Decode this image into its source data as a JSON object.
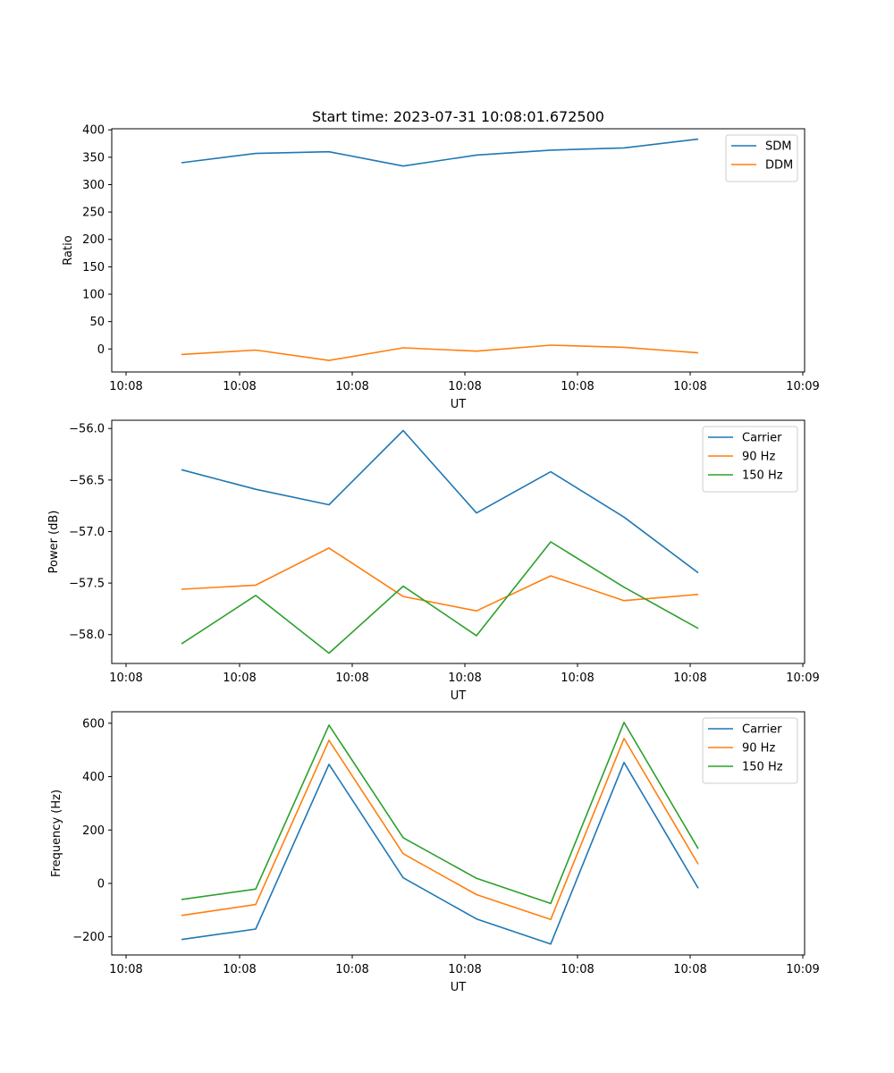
{
  "figure_title": "Start time: 2023-07-31 10:08:01.672500",
  "colors": {
    "series_1": "#1f77b4",
    "series_2": "#ff7f0e",
    "series_3": "#2ca02c"
  },
  "chart_data": [
    {
      "type": "line",
      "xlabel": "UT",
      "ylabel": "Ratio",
      "x_ticks": [
        "10:08",
        "10:08",
        "10:08",
        "10:08",
        "10:08",
        "10:08",
        "10:09"
      ],
      "y_ticks": [
        "0",
        "50",
        "100",
        "150",
        "200",
        "250",
        "300",
        "350",
        "400"
      ],
      "ylim": [
        -42,
        402
      ],
      "legend_position": "top-right",
      "series": [
        {
          "name": "SDM",
          "color": "#1f77b4",
          "values": [
            340,
            357,
            360,
            334,
            354,
            363,
            367,
            383
          ]
        },
        {
          "name": "DDM",
          "color": "#ff7f0e",
          "values": [
            -10,
            -2,
            -21,
            2,
            -4,
            7,
            3,
            -7
          ]
        }
      ]
    },
    {
      "type": "line",
      "xlabel": "UT",
      "ylabel": "Power (dB)",
      "x_ticks": [
        "10:08",
        "10:08",
        "10:08",
        "10:08",
        "10:08",
        "10:08",
        "10:09"
      ],
      "y_ticks": [
        "−58.0",
        "−57.5",
        "−57.0",
        "−56.5",
        "−56.0"
      ],
      "ylim": [
        -58.28,
        -55.92
      ],
      "legend_position": "top-right",
      "series": [
        {
          "name": "Carrier",
          "color": "#1f77b4",
          "values": [
            -56.4,
            -56.59,
            -56.74,
            -56.02,
            -56.82,
            -56.42,
            -56.86,
            -57.4
          ]
        },
        {
          "name": "90 Hz",
          "color": "#ff7f0e",
          "values": [
            -57.56,
            -57.52,
            -57.16,
            -57.63,
            -57.77,
            -57.43,
            -57.67,
            -57.61
          ]
        },
        {
          "name": "150 Hz",
          "color": "#2ca02c",
          "values": [
            -58.09,
            -57.62,
            -58.18,
            -57.53,
            -58.01,
            -57.1,
            -57.54,
            -57.94
          ]
        }
      ]
    },
    {
      "type": "line",
      "xlabel": "UT",
      "ylabel": "Frequency (Hz)",
      "x_ticks": [
        "10:08",
        "10:08",
        "10:08",
        "10:08",
        "10:08",
        "10:08",
        "10:09"
      ],
      "y_ticks": [
        "−200",
        "0",
        "200",
        "400",
        "600"
      ],
      "ylim": [
        -268,
        643
      ],
      "legend_position": "top-right",
      "series": [
        {
          "name": "Carrier",
          "color": "#1f77b4",
          "values": [
            -210,
            -171,
            446,
            21,
            -133,
            -227,
            453,
            -18
          ]
        },
        {
          "name": "90 Hz",
          "color": "#ff7f0e",
          "values": [
            -120,
            -79,
            536,
            111,
            -42,
            -135,
            543,
            72
          ]
        },
        {
          "name": "150 Hz",
          "color": "#2ca02c",
          "values": [
            -60,
            -21,
            593,
            171,
            19,
            -75,
            603,
            130
          ]
        }
      ]
    }
  ]
}
